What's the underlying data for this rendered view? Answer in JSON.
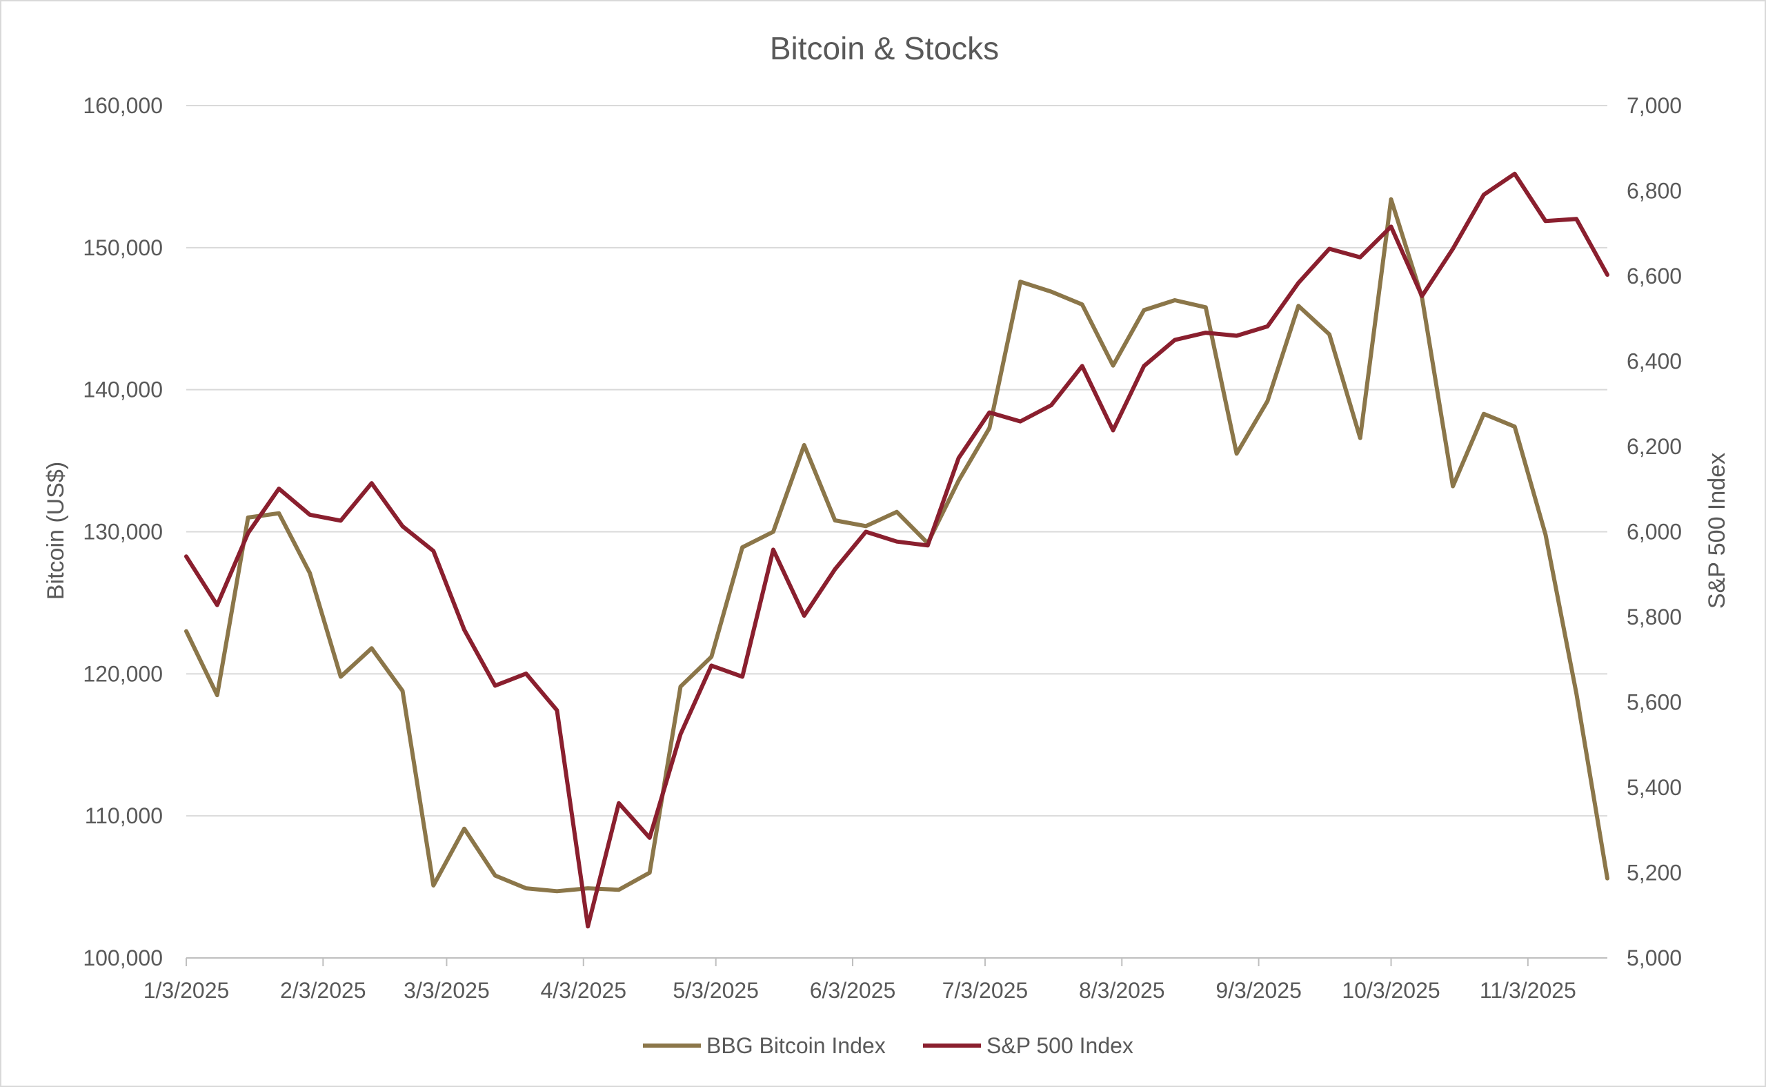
{
  "chart_data": {
    "type": "line",
    "title": "Bitcoin & Stocks",
    "ylabel": "Bitcoin (US$)",
    "y2label": "S&P 500 Index",
    "xlabel": "",
    "grid": true,
    "legend_position": "bottom",
    "ylim": [
      100000,
      160000
    ],
    "y2lim": [
      5000,
      7000
    ],
    "y_ticks": [
      "100,000",
      "110,000",
      "120,000",
      "130,000",
      "140,000",
      "150,000",
      "160,000"
    ],
    "y2_ticks": [
      "5,000",
      "5,200",
      "5,400",
      "5,600",
      "5,800",
      "6,000",
      "6,200",
      "6,400",
      "6,600",
      "6,800",
      "7,000"
    ],
    "x_ticks": [
      "1/3/2025",
      "2/3/2025",
      "3/3/2025",
      "4/3/2025",
      "5/3/2025",
      "6/3/2025",
      "7/3/2025",
      "8/3/2025",
      "9/3/2025",
      "10/3/2025",
      "11/3/2025"
    ],
    "x": [
      "2025-01-03",
      "2025-01-10",
      "2025-01-17",
      "2025-01-24",
      "2025-01-31",
      "2025-02-07",
      "2025-02-14",
      "2025-02-21",
      "2025-02-28",
      "2025-03-07",
      "2025-03-14",
      "2025-03-21",
      "2025-03-28",
      "2025-04-04",
      "2025-04-11",
      "2025-04-18",
      "2025-04-25",
      "2025-05-02",
      "2025-05-09",
      "2025-05-16",
      "2025-05-23",
      "2025-05-30",
      "2025-06-06",
      "2025-06-13",
      "2025-06-20",
      "2025-06-27",
      "2025-07-04",
      "2025-07-11",
      "2025-07-18",
      "2025-07-25",
      "2025-08-01",
      "2025-08-08",
      "2025-08-15",
      "2025-08-22",
      "2025-08-29",
      "2025-09-05",
      "2025-09-12",
      "2025-09-19",
      "2025-09-26",
      "2025-10-03",
      "2025-10-10",
      "2025-10-17",
      "2025-10-24",
      "2025-10-31",
      "2025-11-07",
      "2025-11-14",
      "2025-11-21"
    ],
    "series": [
      {
        "name": "BBG Bitcoin Index",
        "axis": "left",
        "color": "#8B7649",
        "values": [
          123000,
          118500,
          131000,
          131300,
          127100,
          119800,
          121800,
          118800,
          105100,
          109100,
          105800,
          104900,
          104700,
          104900,
          104800,
          106000,
          119100,
          121200,
          128900,
          130000,
          136100,
          130800,
          130400,
          131400,
          129200,
          133600,
          137300,
          147600,
          146900,
          146000,
          141700,
          145600,
          146300,
          145800,
          135500,
          139200,
          145900,
          143900,
          136600,
          153400,
          146500,
          133200,
          138300,
          137400,
          129800,
          118600,
          105600
        ]
      },
      {
        "name": "S&P 500 Index",
        "axis": "right",
        "color": "#8A1F2E",
        "values": [
          5942,
          5828,
          5997,
          6101,
          6040,
          6026,
          6114,
          6013,
          5955,
          5770,
          5639,
          5667,
          5581,
          5074,
          5363,
          5282,
          5525,
          5686,
          5660,
          5958,
          5803,
          5912,
          6000,
          5977,
          5968,
          6173,
          6280,
          6259,
          6297,
          6389,
          6238,
          6389,
          6450,
          6467,
          6460,
          6482,
          6584,
          6664,
          6644,
          6716,
          6553,
          6664,
          6791,
          6840,
          6729,
          6734,
          6603
        ]
      }
    ]
  }
}
